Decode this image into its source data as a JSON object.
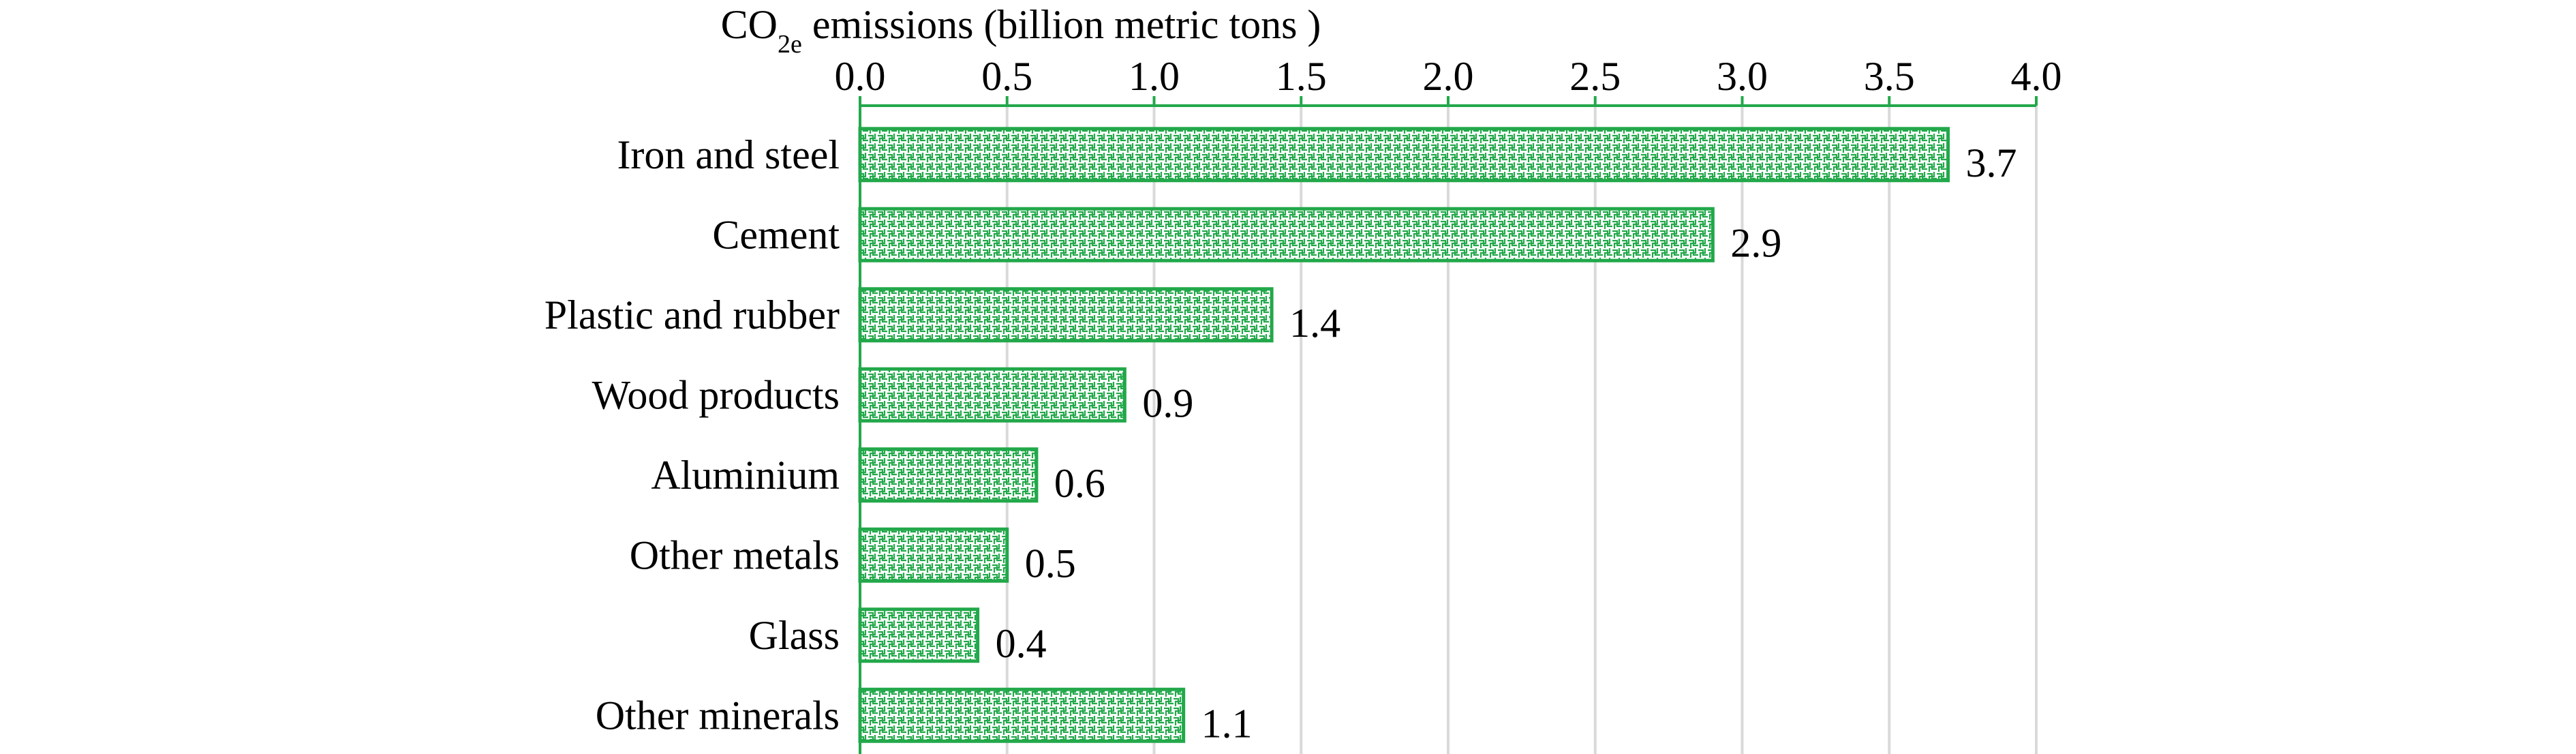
{
  "chart_data": {
    "type": "bar",
    "orientation": "horizontal",
    "title": "",
    "xlabel": {
      "prefix": "CO",
      "subscript": "2e",
      "suffix": " emissions (billion metric tons )"
    },
    "ylabel": "",
    "x_axis_position": "top",
    "xlim": [
      0,
      4.0
    ],
    "x_ticks": [
      "0.0",
      "0.5",
      "1.0",
      "1.5",
      "2.0",
      "2.5",
      "3.0",
      "3.5",
      "4.0"
    ],
    "categories": [
      "Iron and steel",
      "Cement",
      "Plastic and rubber",
      "Wood products",
      "Aluminium",
      "Other metals",
      "Glass",
      "Other minerals"
    ],
    "values": [
      3.7,
      2.9,
      1.4,
      0.9,
      0.6,
      0.5,
      0.4,
      1.1
    ],
    "data_labels": [
      "3.7",
      "2.9",
      "1.4",
      "0.9",
      "0.6",
      "0.5",
      "0.4",
      "1.1"
    ],
    "grid": "vertical",
    "legend": "none",
    "colors": {
      "bar_outline": "#22a84a",
      "bar_pattern": "#22a84a",
      "bar_fill": "#ffffff",
      "gridline": "#d9d9d9",
      "axis": "#22a84a",
      "text": "#000000"
    }
  }
}
